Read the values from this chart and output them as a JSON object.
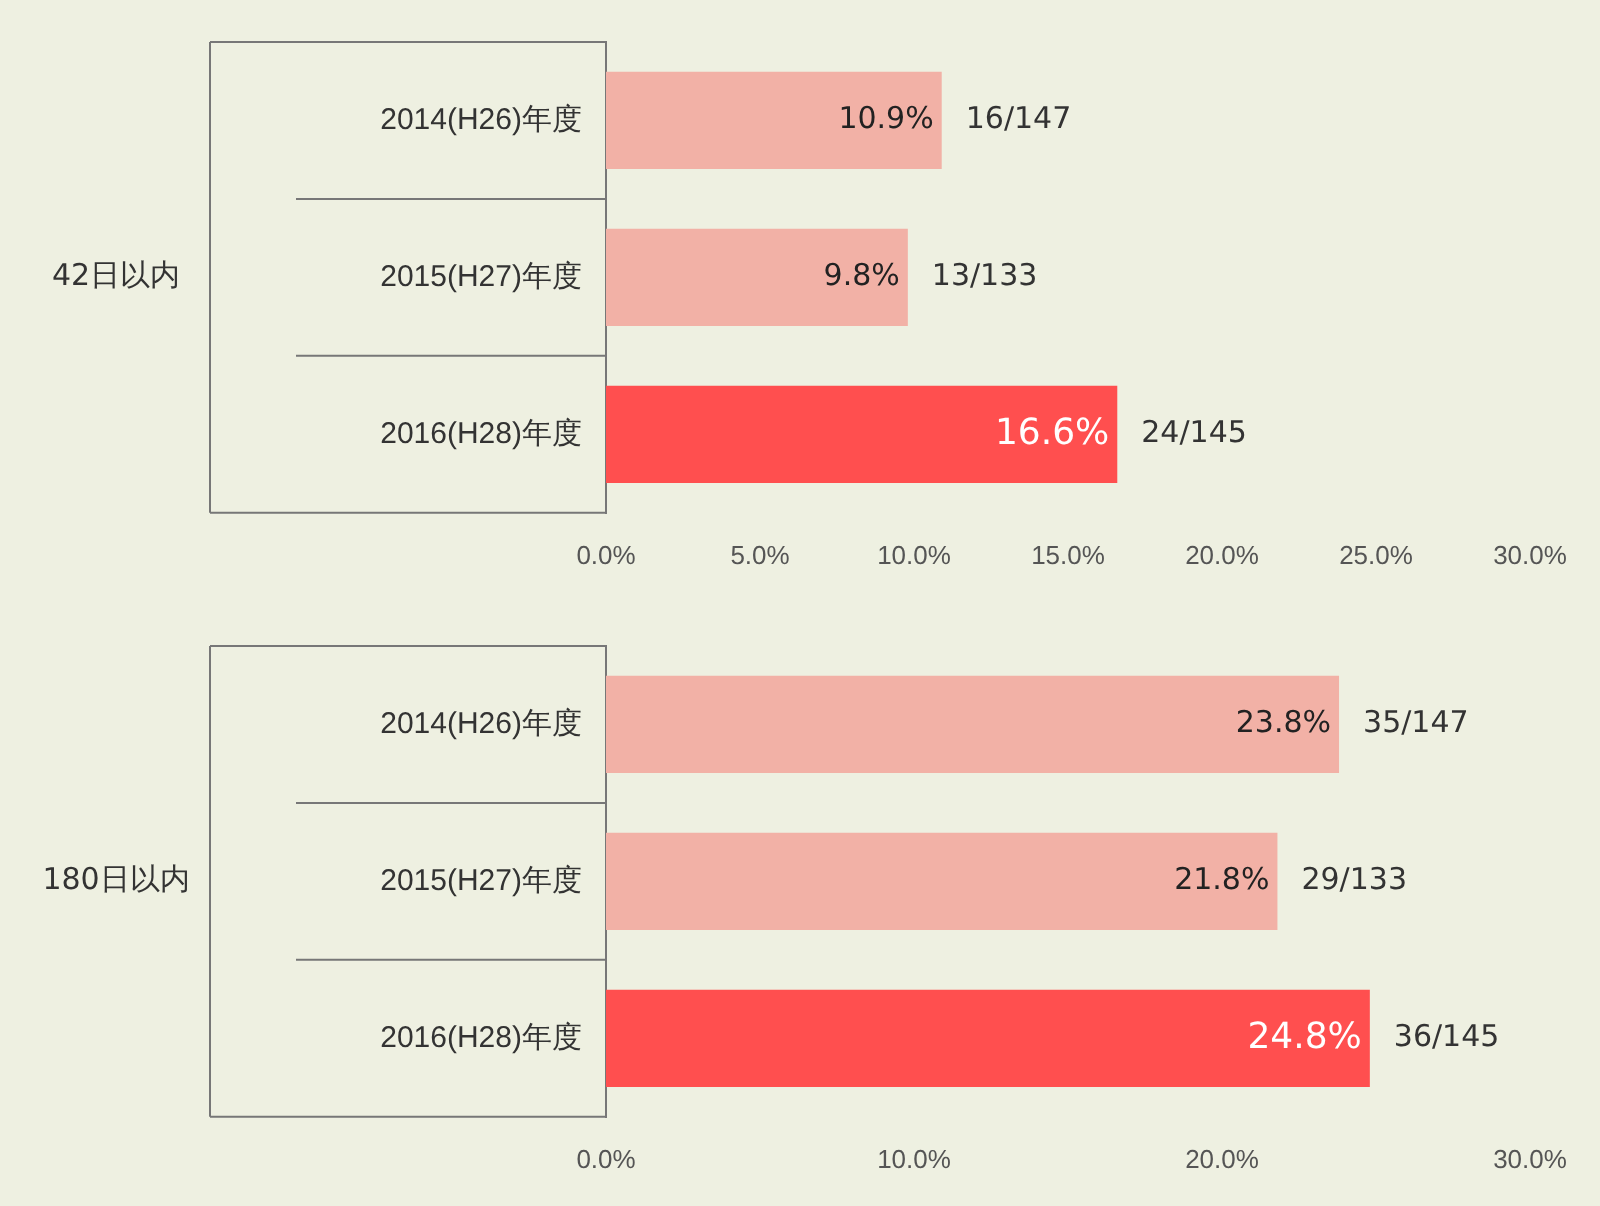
{
  "chart_data": [
    {
      "type": "bar",
      "orientation": "horizontal",
      "ylabel": "42日以内",
      "categories": [
        "2014(H26)年度",
        "2015(H27)年度",
        "2016(H28)年度"
      ],
      "values": [
        10.9,
        9.8,
        16.6
      ],
      "colors": [
        "#f2b1a6",
        "#f2b1a6",
        "#ff4f4f"
      ],
      "value_labels": [
        "10.9%",
        "9.8%",
        "16.6%"
      ],
      "annotations": [
        {
          "text": "16/147",
          "x": 10.9,
          "y": "2014(H26)年度"
        },
        {
          "text": "13/133",
          "x": 9.8,
          "y": "2015(H27)年度"
        },
        {
          "text": "24/145",
          "x": 16.6,
          "y": "2016(H28)年度"
        }
      ],
      "xlim": [
        0,
        30
      ],
      "xticks": [
        {
          "value": 0,
          "label": "0.0%"
        },
        {
          "value": 5,
          "label": "5.0%"
        },
        {
          "value": 10,
          "label": "10.0%"
        },
        {
          "value": 15,
          "label": "15.0%"
        },
        {
          "value": 20,
          "label": "20.0%"
        },
        {
          "value": 25,
          "label": "25.0%"
        },
        {
          "value": 30,
          "label": "30.0%"
        }
      ],
      "grid": false,
      "legend": false
    },
    {
      "type": "bar",
      "orientation": "horizontal",
      "ylabel": "180日以内",
      "categories": [
        "2014(H26)年度",
        "2015(H27)年度",
        "2016(H28)年度"
      ],
      "values": [
        23.8,
        21.8,
        24.8
      ],
      "colors": [
        "#f2b1a6",
        "#f2b1a6",
        "#ff4f4f"
      ],
      "value_labels": [
        "23.8%",
        "21.8%",
        "24.8%"
      ],
      "annotations": [
        {
          "text": "35/147",
          "x": 23.8,
          "y": "2014(H26)年度"
        },
        {
          "text": "29/133",
          "x": 21.8,
          "y": "2015(H27)年度"
        },
        {
          "text": "36/145",
          "x": 24.8,
          "y": "2016(H28)年度"
        }
      ],
      "xlim": [
        0,
        30
      ],
      "xticks": [
        {
          "value": 0,
          "label": "0.0%"
        },
        {
          "value": 10,
          "label": "10.0%"
        },
        {
          "value": 20,
          "label": "20.0%"
        },
        {
          "value": 30,
          "label": "30.0%"
        }
      ],
      "grid": false,
      "legend": false
    }
  ]
}
